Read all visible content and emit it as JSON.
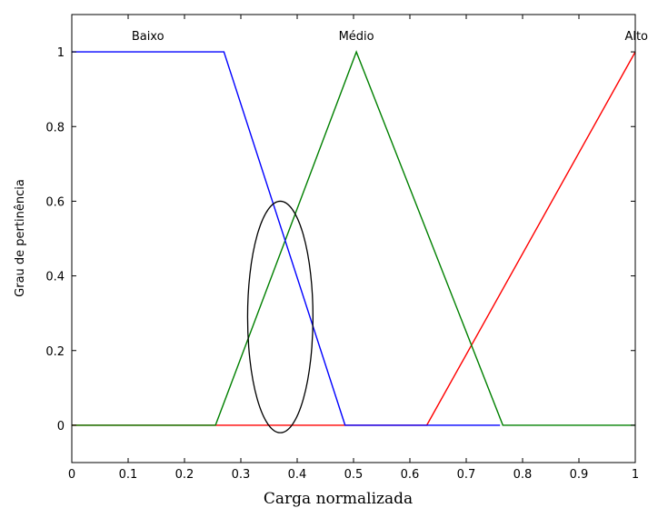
{
  "chart_data": {
    "type": "line",
    "title": "",
    "xlabel": "Carga normalizada",
    "ylabel": "Grau de pertinência",
    "xlim": [
      0,
      1
    ],
    "ylim": [
      -0.1,
      1.1
    ],
    "xticks": [
      "0",
      "0.1",
      "0.2",
      "0.3",
      "0.4",
      "0.5",
      "0.6",
      "0.7",
      "0.8",
      "0.9",
      "1"
    ],
    "yticks": [
      "0",
      "0.2",
      "0.4",
      "0.6",
      "0.8",
      "1"
    ],
    "grid": false,
    "series": [
      {
        "name": "Baixo",
        "color": "#0000ff",
        "x": [
          0,
          0.27,
          0.485,
          0.63,
          0.76
        ],
        "y": [
          1,
          1,
          0,
          0,
          0
        ]
      },
      {
        "name": "Médio",
        "color": "#008000",
        "x": [
          0,
          0.255,
          0.505,
          0.765,
          1
        ],
        "y": [
          0,
          0,
          1,
          0,
          0
        ]
      },
      {
        "name": "Alto",
        "color": "#ff0000",
        "x": [
          0,
          0.63,
          1
        ],
        "y": [
          0,
          0,
          1
        ]
      }
    ],
    "annotations": [
      {
        "type": "ellipse",
        "color": "#000000",
        "cx": 0.37,
        "cy": 0.29,
        "rx": 0.058,
        "ry": 0.31
      }
    ]
  }
}
